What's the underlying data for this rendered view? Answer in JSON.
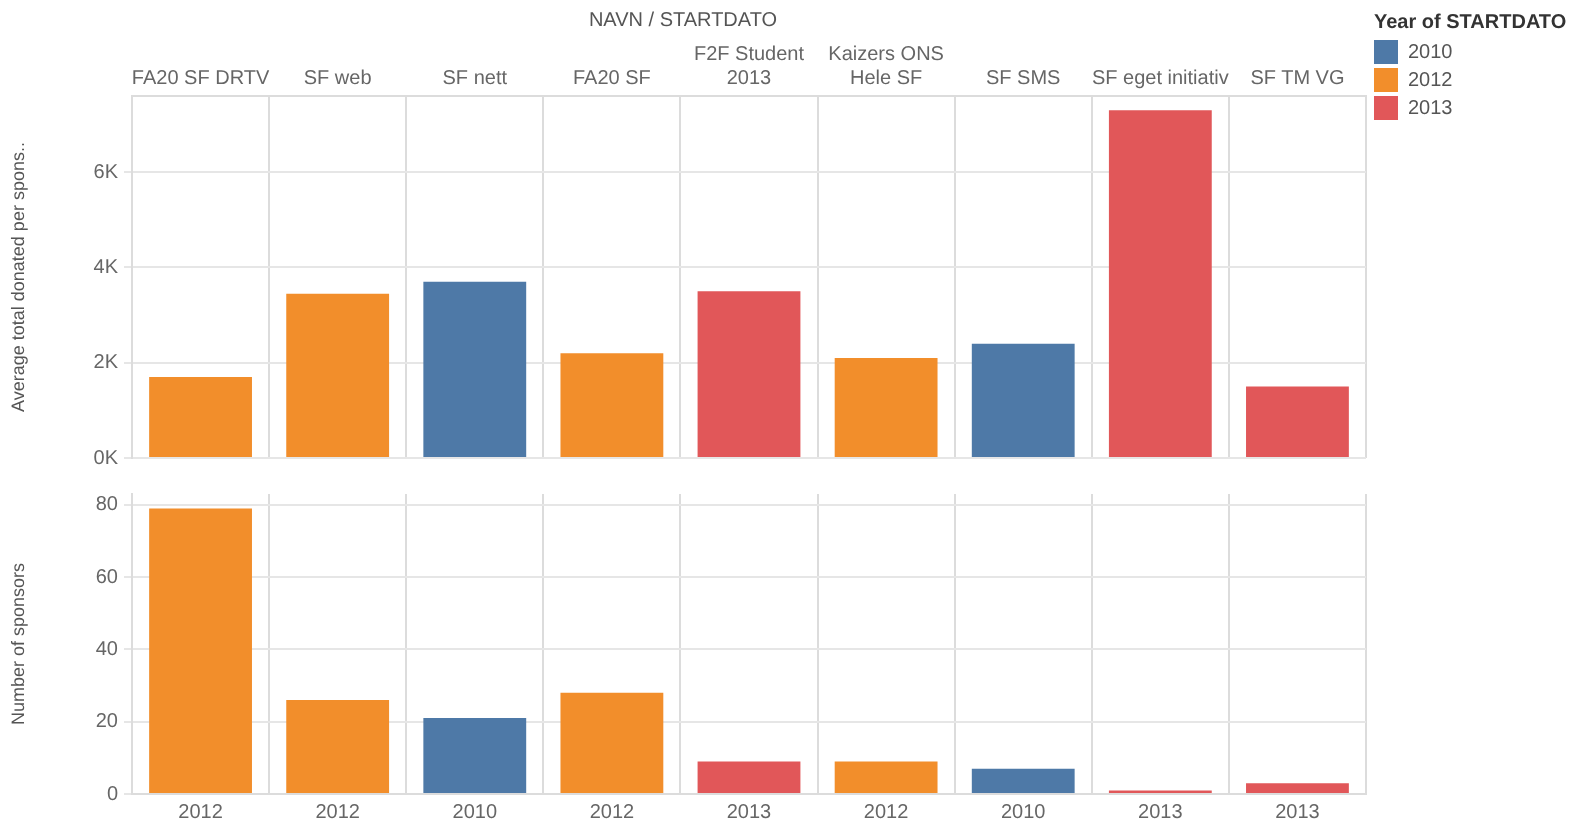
{
  "chart_data": [
    {
      "type": "bar",
      "title": "NAVN / STARTDATO",
      "ylabel": "Average total donated per spons..",
      "legend_title": "Year of STARTDATO",
      "categories": [
        "FA20 SF DRTV",
        "SF web",
        "SF nett",
        "FA20 SF",
        "F2F Student 2013",
        "Kaizers ONS Hele SF",
        "SF SMS",
        "SF eget initiativ",
        "SF TM VG"
      ],
      "stacked": true,
      "series": [
        {
          "name": "2010",
          "color": "#4e79a7",
          "values": [
            null,
            null,
            3700,
            null,
            null,
            null,
            2400,
            null,
            null
          ]
        },
        {
          "name": "2012",
          "color": "#f28e2b",
          "values": [
            1700,
            3450,
            null,
            2200,
            null,
            2100,
            null,
            null,
            null
          ]
        },
        {
          "name": "2013",
          "color": "#e15759",
          "values": [
            null,
            null,
            null,
            null,
            3500,
            null,
            null,
            7300,
            1500
          ]
        }
      ],
      "ylim": [
        0,
        7600
      ],
      "yticks": [
        {
          "value": 0,
          "label": "0K"
        },
        {
          "value": 2000,
          "label": "2K"
        },
        {
          "value": 4000,
          "label": "4K"
        },
        {
          "value": 6000,
          "label": "6K"
        }
      ],
      "grid": true,
      "legend": "right"
    },
    {
      "type": "bar",
      "ylabel": "Number of sponsors",
      "categories": [
        "2012",
        "2012",
        "2010",
        "2012",
        "2013",
        "2012",
        "2010",
        "2013",
        "2013"
      ],
      "stacked": true,
      "series": [
        {
          "color": "#4e79a7",
          "values": [
            null,
            null,
            21,
            null,
            null,
            null,
            7,
            null,
            null
          ]
        },
        {
          "color": "#f28e2b",
          "values": [
            79,
            26,
            null,
            28,
            null,
            9,
            null,
            null,
            null
          ]
        },
        {
          "color": "#e15759",
          "values": [
            null,
            null,
            null,
            null,
            9,
            null,
            null,
            1,
            3
          ]
        }
      ],
      "ylim": [
        0,
        83
      ],
      "yticks": [
        0,
        20,
        40,
        60,
        80
      ],
      "grid": true
    }
  ]
}
